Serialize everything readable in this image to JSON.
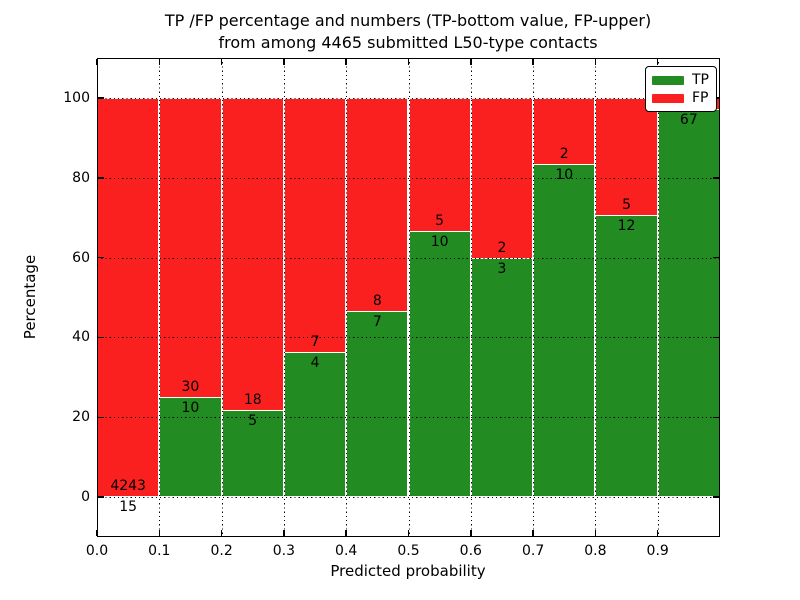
{
  "title": {
    "line1": "TP /FP percentage and numbers (TP-bottom value, FP-upper)",
    "line2": "from among 4465 submitted L50-type contacts"
  },
  "axes": {
    "xlabel": "Predicted probability",
    "ylabel": "Percentage",
    "xtick_labels": [
      "0.0",
      "0.1",
      "0.2",
      "0.3",
      "0.4",
      "0.5",
      "0.6",
      "0.7",
      "0.8",
      "0.9"
    ],
    "ytick_labels": [
      "0",
      "20",
      "40",
      "60",
      "80",
      "100"
    ],
    "ytick_values": [
      0,
      20,
      40,
      60,
      80,
      100
    ],
    "xtick_values": [
      0,
      0.1,
      0.2,
      0.3,
      0.4,
      0.5,
      0.6,
      0.7,
      0.8,
      0.9
    ],
    "ylim": [
      -10,
      110
    ],
    "xlim": [
      0,
      1
    ],
    "grid": "dotted"
  },
  "legend": {
    "position": "upper-right",
    "items": [
      {
        "label": "TP",
        "color": "#228b22"
      },
      {
        "label": "FP",
        "color": "#fb2020"
      }
    ]
  },
  "colors": {
    "tp": "#228b22",
    "fp": "#fb2020",
    "bar_edge": "#ffffff",
    "grid": "#000000",
    "frame": "#000000",
    "background": "#ffffff",
    "text": "#000000"
  },
  "chart_data": {
    "type": "bar",
    "stacked": true,
    "title": "TP /FP percentage and numbers (TP-bottom value, FP-upper) from among 4465 submitted L50-type contacts",
    "xlabel": "Predicted probability",
    "ylabel": "Percentage",
    "ylim": [
      -10,
      110
    ],
    "bin_edges": [
      0.0,
      0.1,
      0.2,
      0.3,
      0.4,
      0.5,
      0.6,
      0.7,
      0.8,
      0.9,
      1.0
    ],
    "bins": [
      "0.0-0.1",
      "0.1-0.2",
      "0.2-0.3",
      "0.3-0.4",
      "0.4-0.5",
      "0.5-0.6",
      "0.6-0.7",
      "0.7-0.8",
      "0.8-0.9",
      "0.9-1.0"
    ],
    "series": [
      {
        "name": "TP",
        "counts": [
          15,
          10,
          5,
          4,
          7,
          10,
          3,
          10,
          12,
          67
        ],
        "pct": [
          0.35,
          25.0,
          21.74,
          36.36,
          46.67,
          66.67,
          60.0,
          83.33,
          70.59,
          97.1
        ]
      },
      {
        "name": "FP",
        "counts": [
          4243,
          30,
          18,
          7,
          8,
          5,
          2,
          2,
          5,
          null
        ],
        "pct": [
          99.65,
          75.0,
          78.26,
          63.64,
          53.33,
          33.33,
          40.0,
          16.67,
          29.41,
          2.9
        ]
      }
    ],
    "bar_labels": [
      {
        "fp": "4243",
        "tp": "15"
      },
      {
        "fp": "30",
        "tp": "10"
      },
      {
        "fp": "18",
        "tp": "5"
      },
      {
        "fp": "7",
        "tp": "4"
      },
      {
        "fp": "8",
        "tp": "7"
      },
      {
        "fp": "5",
        "tp": "10"
      },
      {
        "fp": "2",
        "tp": "3"
      },
      {
        "fp": "2",
        "tp": "10"
      },
      {
        "fp": "5",
        "tp": "12"
      },
      {
        "fp": "",
        "tp": "67"
      }
    ]
  }
}
